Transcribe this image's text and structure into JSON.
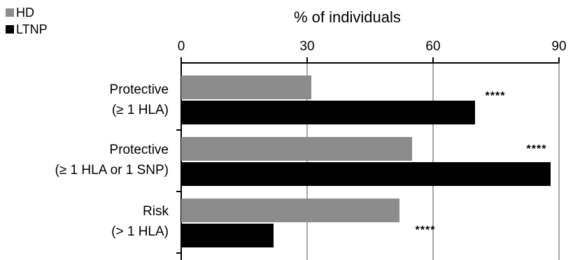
{
  "chart_data": {
    "type": "bar",
    "orientation": "horizontal",
    "xlabel": "% of individuals",
    "xlim": [
      0,
      90
    ],
    "xticks": [
      0,
      30,
      60,
      90
    ],
    "grid": true,
    "legend_position": "top-left",
    "categories": [
      {
        "line1": "Protective",
        "line2": "(≥ 1 HLA)"
      },
      {
        "line1": "Protective",
        "line2": "(≥ 1 HLA or 1 SNP)"
      },
      {
        "line1": "Risk",
        "line2": "(> 1 HLA)"
      }
    ],
    "series": [
      {
        "name": "HD",
        "color": "#8c8c8c",
        "values": [
          31,
          55,
          52
        ]
      },
      {
        "name": "LTNP",
        "color": "#000000",
        "values": [
          70,
          88,
          22
        ]
      }
    ],
    "annotations": [
      "****",
      "****",
      "****"
    ]
  }
}
